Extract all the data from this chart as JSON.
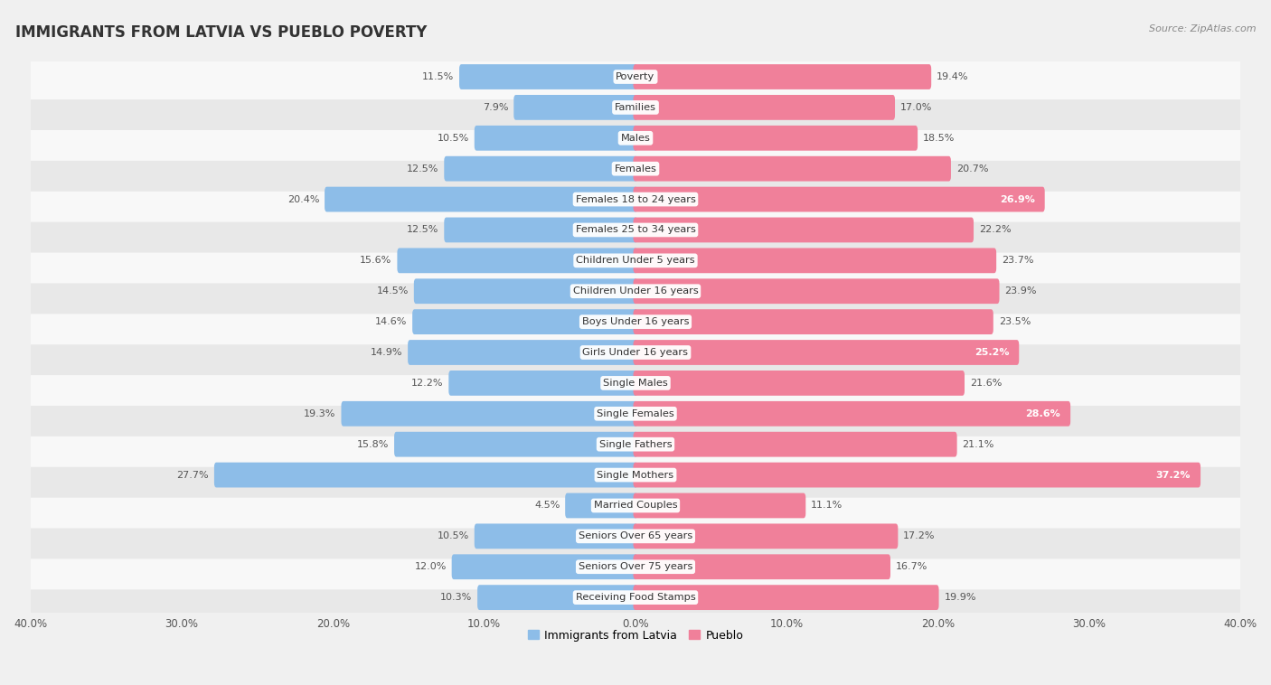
{
  "title": "IMMIGRANTS FROM LATVIA VS PUEBLO POVERTY",
  "source": "Source: ZipAtlas.com",
  "categories": [
    "Poverty",
    "Families",
    "Males",
    "Females",
    "Females 18 to 24 years",
    "Females 25 to 34 years",
    "Children Under 5 years",
    "Children Under 16 years",
    "Boys Under 16 years",
    "Girls Under 16 years",
    "Single Males",
    "Single Females",
    "Single Fathers",
    "Single Mothers",
    "Married Couples",
    "Seniors Over 65 years",
    "Seniors Over 75 years",
    "Receiving Food Stamps"
  ],
  "latvia_values": [
    11.5,
    7.9,
    10.5,
    12.5,
    20.4,
    12.5,
    15.6,
    14.5,
    14.6,
    14.9,
    12.2,
    19.3,
    15.8,
    27.7,
    4.5,
    10.5,
    12.0,
    10.3
  ],
  "pueblo_values": [
    19.4,
    17.0,
    18.5,
    20.7,
    26.9,
    22.2,
    23.7,
    23.9,
    23.5,
    25.2,
    21.6,
    28.6,
    21.1,
    37.2,
    11.1,
    17.2,
    16.7,
    19.9
  ],
  "latvia_color": "#8dbde8",
  "pueblo_color": "#f0809a",
  "axis_limit": 40.0,
  "legend_latvia": "Immigrants from Latvia",
  "legend_pueblo": "Pueblo",
  "bg_color": "#f0f0f0",
  "row_light": "#f8f8f8",
  "row_dark": "#e8e8e8",
  "bar_height": 0.52,
  "label_fontsize": 8.2,
  "title_fontsize": 12,
  "value_fontsize": 8.0,
  "tick_fontsize": 8.5
}
